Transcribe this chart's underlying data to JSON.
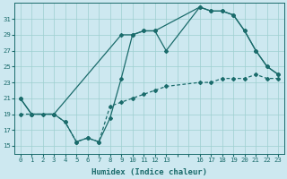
{
  "xlabel": "Humidex (Indice chaleur)",
  "bg_color": "#cde8f0",
  "grid_color": "#9dcfcf",
  "line_color": "#1a6b6b",
  "xlim": [
    -0.5,
    23.5
  ],
  "ylim": [
    14.0,
    33.0
  ],
  "yticks": [
    15,
    17,
    19,
    21,
    23,
    25,
    27,
    29,
    31
  ],
  "xtick_labels": [
    "0",
    "1",
    "2",
    "3",
    "4",
    "5",
    "6",
    "7",
    "8",
    "9",
    "10",
    "11",
    "12",
    "13",
    "",
    "",
    "16",
    "17",
    "18",
    "19",
    "20",
    "21",
    "22",
    "23"
  ],
  "xtick_pos": [
    0,
    1,
    2,
    3,
    4,
    5,
    6,
    7,
    8,
    9,
    10,
    11,
    12,
    13,
    14,
    15,
    16,
    17,
    18,
    19,
    20,
    21,
    22,
    23
  ],
  "line1_x": [
    0,
    1,
    3,
    4,
    5,
    6,
    7,
    8,
    9,
    10,
    11,
    12,
    13,
    16,
    17,
    18,
    19,
    20,
    21,
    22,
    23
  ],
  "line1_y": [
    21,
    19,
    19,
    18,
    15.5,
    16,
    15.5,
    18.5,
    23.5,
    29,
    29.5,
    29.5,
    27,
    32.5,
    32,
    32,
    31.5,
    29.5,
    27,
    25,
    24
  ],
  "line2_x": [
    0,
    1,
    3,
    9,
    10,
    11,
    12,
    16,
    17,
    18,
    19,
    20,
    21,
    22,
    23
  ],
  "line2_y": [
    21,
    19,
    19,
    29,
    29,
    29.5,
    29.5,
    32.5,
    32,
    32,
    31.5,
    29.5,
    27,
    25,
    24
  ],
  "line3_x": [
    0,
    1,
    2,
    3,
    4,
    5,
    6,
    7,
    8,
    9,
    10,
    11,
    12,
    13,
    16,
    17,
    18,
    19,
    20,
    21,
    22,
    23
  ],
  "line3_y": [
    19,
    19,
    19,
    19,
    18,
    15.5,
    16,
    15.5,
    20,
    20.5,
    21,
    21.5,
    22,
    22.5,
    23,
    23,
    23.5,
    23.5,
    23.5,
    24,
    23.5,
    23.5
  ],
  "ms": 2.0,
  "lw": 0.9,
  "xlabel_fontsize": 6.5,
  "tick_fontsize": 5.2
}
